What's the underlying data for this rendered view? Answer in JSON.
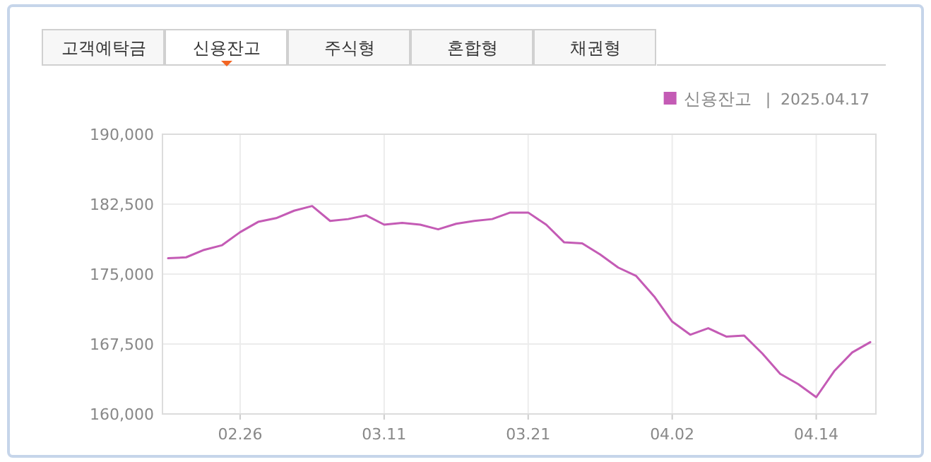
{
  "chart_data": {
    "type": "line",
    "subtitle": "|  2025.04.17",
    "annotations": [
      "고객예탁금",
      "신용잔고",
      "주식형",
      "혼합형",
      "채권형"
    ],
    "categories": [
      null,
      null,
      null,
      null,
      "02.26",
      null,
      null,
      null,
      null,
      null,
      null,
      null,
      "03.11",
      null,
      null,
      null,
      null,
      null,
      null,
      null,
      "03.21",
      null,
      null,
      null,
      null,
      null,
      null,
      null,
      "04.02",
      null,
      null,
      null,
      null,
      null,
      null,
      null,
      "04.14",
      null,
      null,
      null
    ],
    "series": [
      {
        "name": "신용잔고",
        "color": "#c45bb5",
        "values": [
          176700,
          176800,
          177600,
          178100,
          179500,
          180600,
          181000,
          181800,
          182300,
          180700,
          180900,
          181300,
          180300,
          180500,
          180300,
          179800,
          180400,
          180700,
          180900,
          181600,
          181600,
          180300,
          178400,
          178300,
          177100,
          175700,
          174800,
          172600,
          169900,
          168500,
          169200,
          168300,
          168400,
          166500,
          164300,
          163200,
          161800,
          164600,
          166600,
          167700
        ]
      }
    ],
    "ylim": [
      160000,
      190000
    ],
    "yticks": [
      {
        "value": 160000,
        "label": "160,000"
      },
      {
        "value": 167500,
        "label": "167,500"
      },
      {
        "value": 175000,
        "label": "175,000"
      },
      {
        "value": 182500,
        "label": "182,500"
      },
      {
        "value": 190000,
        "label": "190,000"
      }
    ],
    "grid": true,
    "legend": "top right",
    "marker": "none",
    "line_style": "solid"
  }
}
